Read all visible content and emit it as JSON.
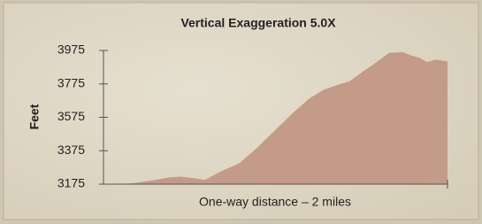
{
  "chart_data": {
    "type": "area",
    "title": "Vertical Exaggeration 5.0X",
    "xlabel": "One-way distance – 2 miles",
    "ylabel": "Feet",
    "color": "#c49b88",
    "x": [
      0,
      0.17,
      0.3,
      0.38,
      0.45,
      0.53,
      0.59,
      0.68,
      0.79,
      0.89,
      0.99,
      1.1,
      1.2,
      1.28,
      1.35,
      1.43,
      1.51,
      1.58,
      1.66,
      1.74,
      1.79,
      1.84,
      1.88,
      1.93,
      2
    ],
    "values": [
      3175,
      3180,
      3200,
      3215,
      3220,
      3210,
      3200,
      3250,
      3300,
      3390,
      3490,
      3600,
      3690,
      3740,
      3765,
      3790,
      3850,
      3900,
      3960,
      3965,
      3945,
      3930,
      3905,
      3920,
      3910
    ],
    "xlim": [
      0,
      2
    ],
    "ylim": [
      3175,
      3975
    ],
    "yticks": [
      3175,
      3375,
      3575,
      3775,
      3975
    ]
  }
}
